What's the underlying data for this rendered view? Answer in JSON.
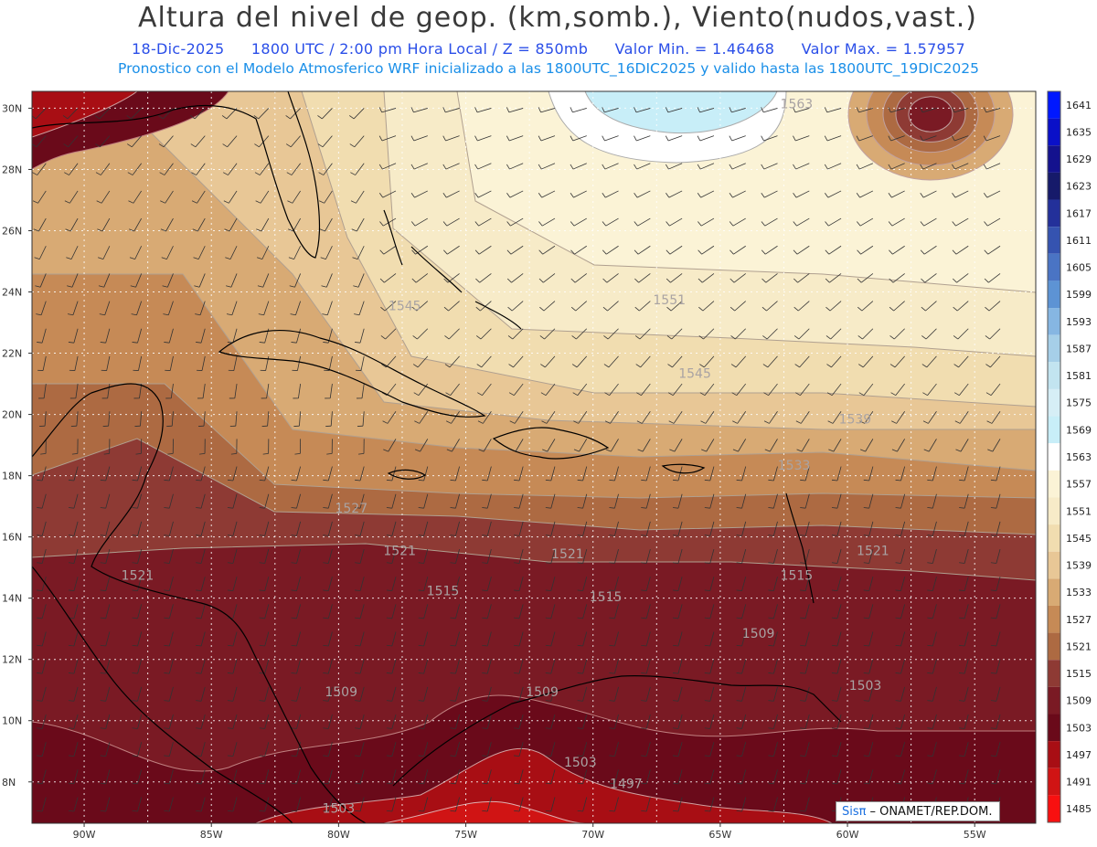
{
  "title": "Altura del nivel de geop. (km,somb.), Viento(nudos,vast.)",
  "subtitle": {
    "date": "18-Dic-2025",
    "time": "1800 UTC / 2:00 pm Hora Local / Z = 850mb",
    "min": "Valor Min. = 1.46468",
    "max": "Valor Max. = 1.57957"
  },
  "model_line": "Pronostico con el Modelo Atmosferico WRF inicializado a las 1800UTC_16DIC2025 y valido hasta las  1800UTC_19DIC2025",
  "lat_labels": [
    "30N",
    "28N",
    "26N",
    "24N",
    "22N",
    "20N",
    "18N",
    "16N",
    "14N",
    "12N",
    "10N",
    "8N"
  ],
  "lon_labels": [
    "90W",
    "85W",
    "80W",
    "75W",
    "70W",
    "65W",
    "60W",
    "55W"
  ],
  "colorbar": {
    "levels": [
      "1641",
      "1635",
      "1629",
      "1623",
      "1617",
      "1611",
      "1605",
      "1599",
      "1593",
      "1587",
      "1581",
      "1575",
      "1569",
      "1563",
      "1557",
      "1551",
      "1545",
      "1539",
      "1533",
      "1527",
      "1521",
      "1515",
      "1509",
      "1503",
      "1497",
      "1491",
      "1485"
    ],
    "colors": [
      "#0018ff",
      "#0a10c8",
      "#14128e",
      "#161a6a",
      "#23309a",
      "#3553b0",
      "#4a74c4",
      "#5d93d4",
      "#86b6e2",
      "#a6cfe8",
      "#c2e4f0",
      "#d6eef6",
      "#c8eef8",
      "#ffffff",
      "#fbf3d6",
      "#f7ebc8",
      "#f1ddb0",
      "#e8c796",
      "#d8aa74",
      "#c68a56",
      "#ad6a42",
      "#8e3a34",
      "#7a1a24",
      "#6a0a1a",
      "#a80e14",
      "#d01414",
      "#f81010"
    ]
  },
  "contour_labels": [
    {
      "text": "1563",
      "lon": -62.0,
      "lat": 30.0
    },
    {
      "text": "1551",
      "lon": -67.0,
      "lat": 23.6
    },
    {
      "text": "1545",
      "lon": -77.4,
      "lat": 23.4
    },
    {
      "text": "1545",
      "lon": -66.0,
      "lat": 21.2
    },
    {
      "text": "1539",
      "lon": -59.7,
      "lat": 19.7
    },
    {
      "text": "1533",
      "lon": -62.1,
      "lat": 18.2
    },
    {
      "text": "1527",
      "lon": -79.5,
      "lat": 16.8
    },
    {
      "text": "1521",
      "lon": -77.6,
      "lat": 15.4
    },
    {
      "text": "1521",
      "lon": -71.0,
      "lat": 15.3
    },
    {
      "text": "1521",
      "lon": -59.0,
      "lat": 15.4
    },
    {
      "text": "1521",
      "lon": -87.9,
      "lat": 14.6
    },
    {
      "text": "1515",
      "lon": -75.9,
      "lat": 14.1
    },
    {
      "text": "1515",
      "lon": -69.5,
      "lat": 13.9
    },
    {
      "text": "1515",
      "lon": -62.0,
      "lat": 14.6
    },
    {
      "text": "1509",
      "lon": -63.5,
      "lat": 12.7
    },
    {
      "text": "1509",
      "lon": -79.9,
      "lat": 10.8
    },
    {
      "text": "1509",
      "lon": -72.0,
      "lat": 10.8
    },
    {
      "text": "1503",
      "lon": -59.3,
      "lat": 11.0
    },
    {
      "text": "1503",
      "lon": -70.5,
      "lat": 8.5
    },
    {
      "text": "1503",
      "lon": -80.0,
      "lat": 7.0
    },
    {
      "text": "1497",
      "lon": -68.7,
      "lat": 7.8
    }
  ],
  "credit": {
    "brand": "Sisπ",
    "org": "– ONAMET/REP.DOM."
  }
}
